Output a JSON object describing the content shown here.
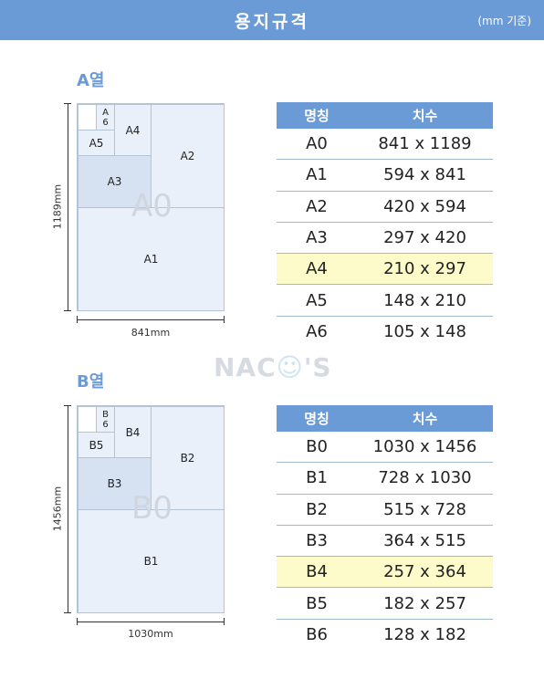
{
  "header": {
    "title": "용지규격",
    "note": "(mm 기준)"
  },
  "watermark": {
    "brand_prefix": "NAC",
    "brand_face": "☺",
    "brand_suffix": "'S"
  },
  "a_series": {
    "title": "A열",
    "height_label": "1189mm",
    "width_label": "841mm",
    "diagram": {
      "big": "A0",
      "a1": "A1",
      "a2": "A2",
      "a3": "A3",
      "a4": "A4",
      "a5": "A5",
      "a6_top": "A",
      "a6_bottom": "6"
    },
    "table": {
      "headers": [
        "명칭",
        "치수"
      ],
      "rows": [
        {
          "name": "A0",
          "size": "841 x 1189"
        },
        {
          "name": "A1",
          "size": "594 x 841"
        },
        {
          "name": "A2",
          "size": "420 x 594"
        },
        {
          "name": "A3",
          "size": "297 x 420"
        },
        {
          "name": "A4",
          "size": "210 x 297"
        },
        {
          "name": "A5",
          "size": "148 x 210"
        },
        {
          "name": "A6",
          "size": "105 x 148"
        }
      ]
    }
  },
  "b_series": {
    "title": "B열",
    "height_label": "1456mm",
    "width_label": "1030mm",
    "diagram": {
      "big": "B0",
      "b1": "B1",
      "b2": "B2",
      "b3": "B3",
      "b4": "B4",
      "b5": "B5",
      "b6_top": "B",
      "b6_bottom": "6"
    },
    "table": {
      "headers": [
        "명칭",
        "치수"
      ],
      "rows": [
        {
          "name": "B0",
          "size": "1030 x 1456"
        },
        {
          "name": "B1",
          "size": "728 x 1030"
        },
        {
          "name": "B2",
          "size": "515 x 728"
        },
        {
          "name": "B3",
          "size": "364 x 515"
        },
        {
          "name": "B4",
          "size": "257 x 364"
        },
        {
          "name": "B5",
          "size": "182 x 257"
        },
        {
          "name": "B6",
          "size": "128 x 182"
        }
      ]
    }
  },
  "colors": {
    "accent": "#6a9bd6",
    "highlight": "#fdfbc9"
  }
}
